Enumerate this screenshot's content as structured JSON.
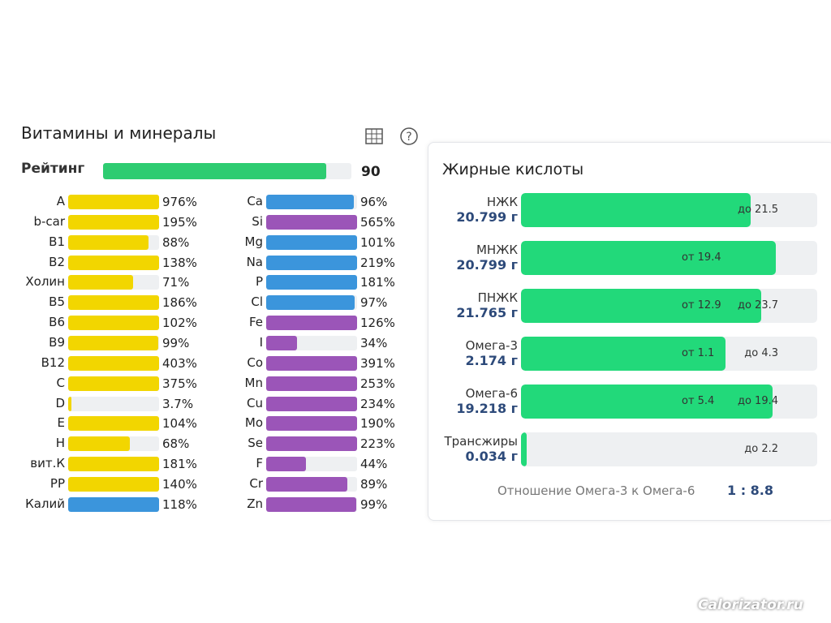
{
  "vitamins": {
    "title": "Витамины и минералы",
    "rating": {
      "name": "Рейтинг",
      "value": 90,
      "color": "#2ecc71"
    },
    "columns": [
      [
        {
          "name": "A",
          "value": 976,
          "label": "976%",
          "color": "#f2d600"
        },
        {
          "name": "b-car",
          "value": 195,
          "label": "195%",
          "color": "#f2d600"
        },
        {
          "name": "B1",
          "value": 88,
          "label": "88%",
          "color": "#f2d600"
        },
        {
          "name": "B2",
          "value": 138,
          "label": "138%",
          "color": "#f2d600"
        },
        {
          "name": "Холин",
          "value": 71,
          "label": "71%",
          "color": "#f2d600"
        },
        {
          "name": "B5",
          "value": 186,
          "label": "186%",
          "color": "#f2d600"
        },
        {
          "name": "B6",
          "value": 102,
          "label": "102%",
          "color": "#f2d600"
        },
        {
          "name": "B9",
          "value": 99,
          "label": "99%",
          "color": "#f2d600"
        },
        {
          "name": "B12",
          "value": 403,
          "label": "403%",
          "color": "#f2d600"
        },
        {
          "name": "C",
          "value": 375,
          "label": "375%",
          "color": "#f2d600"
        },
        {
          "name": "D",
          "value": 3.7,
          "label": "3.7%",
          "color": "#f2d600"
        },
        {
          "name": "E",
          "value": 104,
          "label": "104%",
          "color": "#f2d600"
        },
        {
          "name": "H",
          "value": 68,
          "label": "68%",
          "color": "#f2d600"
        },
        {
          "name": "вит.К",
          "value": 181,
          "label": "181%",
          "color": "#f2d600"
        },
        {
          "name": "PP",
          "value": 140,
          "label": "140%",
          "color": "#f2d600"
        },
        {
          "name": "Калий",
          "value": 118,
          "label": "118%",
          "color": "#3b95dc"
        }
      ],
      [
        {
          "name": "Ca",
          "value": 96,
          "label": "96%",
          "color": "#3b95dc"
        },
        {
          "name": "Si",
          "value": 565,
          "label": "565%",
          "color": "#9b55b8"
        },
        {
          "name": "Mg",
          "value": 101,
          "label": "101%",
          "color": "#3b95dc"
        },
        {
          "name": "Na",
          "value": 219,
          "label": "219%",
          "color": "#3b95dc"
        },
        {
          "name": "P",
          "value": 181,
          "label": "181%",
          "color": "#3b95dc"
        },
        {
          "name": "Cl",
          "value": 97,
          "label": "97%",
          "color": "#3b95dc"
        },
        {
          "name": "Fe",
          "value": 126,
          "label": "126%",
          "color": "#9b55b8"
        },
        {
          "name": "I",
          "value": 34,
          "label": "34%",
          "color": "#9b55b8"
        },
        {
          "name": "Co",
          "value": 391,
          "label": "391%",
          "color": "#9b55b8"
        },
        {
          "name": "Mn",
          "value": 253,
          "label": "253%",
          "color": "#9b55b8"
        },
        {
          "name": "Cu",
          "value": 234,
          "label": "234%",
          "color": "#9b55b8"
        },
        {
          "name": "Mo",
          "value": 190,
          "label": "190%",
          "color": "#9b55b8"
        },
        {
          "name": "Se",
          "value": 223,
          "label": "223%",
          "color": "#9b55b8"
        },
        {
          "name": "F",
          "value": 44,
          "label": "44%",
          "color": "#9b55b8"
        },
        {
          "name": "Cr",
          "value": 89,
          "label": "89%",
          "color": "#9b55b8"
        },
        {
          "name": "Zn",
          "value": 99,
          "label": "99%",
          "color": "#9b55b8"
        }
      ]
    ]
  },
  "fats": {
    "title": "Жирные кислоты",
    "color": "#22d97a",
    "rows": [
      {
        "name": "НЖК",
        "amount": "20.799 г",
        "fill": 77.5,
        "max": "до 21.5"
      },
      {
        "name": "МНЖК",
        "amount": "20.799 г",
        "fill": 86,
        "min": "от 19.4"
      },
      {
        "name": "ПНЖК",
        "amount": "21.765 г",
        "fill": 81,
        "min": "от 12.9",
        "max": "до 23.7"
      },
      {
        "name": "Омега-3",
        "amount": "2.174 г",
        "fill": 69,
        "min": "от 1.1",
        "max": "до 4.3"
      },
      {
        "name": "Омега-6",
        "amount": "19.218 г",
        "fill": 85,
        "min": "от 5.4",
        "max": "до 19.4"
      },
      {
        "name": "Трансжиры",
        "amount": "0.034 г",
        "fill": 2,
        "max": "до 2.2"
      }
    ],
    "ratio_label": "Отношение Омега-3 к Омега-6",
    "ratio": "1 : 8.8"
  },
  "watermark": "Calorizator.ru"
}
